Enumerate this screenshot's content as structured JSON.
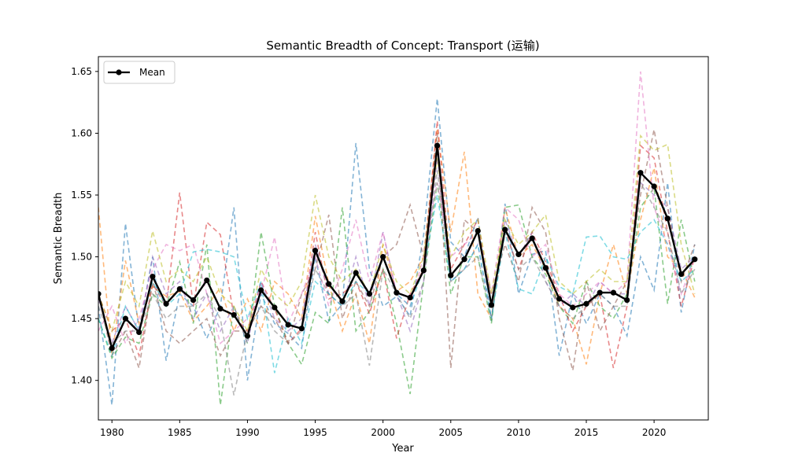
{
  "chart_data": {
    "type": "line",
    "title": "Semantic Breadth of Concept: Transport (运输)",
    "xlabel": "Year",
    "ylabel": "Semantic Breadth",
    "xlim": [
      1979,
      2024
    ],
    "ylim": [
      1.368,
      1.662
    ],
    "x_ticks": [
      1980,
      1985,
      1990,
      1995,
      2000,
      2005,
      2010,
      2015,
      2020
    ],
    "y_ticks": [
      1.4,
      1.45,
      1.5,
      1.55,
      1.6,
      1.65
    ],
    "grid": false,
    "legend": {
      "position": "top-left",
      "entries": [
        "Mean"
      ]
    },
    "x": [
      1979,
      1980,
      1981,
      1982,
      1983,
      1984,
      1985,
      1986,
      1987,
      1988,
      1989,
      1990,
      1991,
      1992,
      1993,
      1994,
      1995,
      1996,
      1997,
      1998,
      1999,
      2000,
      2001,
      2002,
      2003,
      2004,
      2005,
      2006,
      2007,
      2008,
      2009,
      2010,
      2011,
      2012,
      2013,
      2014,
      2015,
      2016,
      2017,
      2018,
      2019,
      2020,
      2021,
      2022,
      2023
    ],
    "series": [
      {
        "name": "Mean",
        "color": "#000000",
        "style": "solid-marker",
        "values": [
          1.47,
          1.426,
          1.45,
          1.439,
          1.484,
          1.462,
          1.474,
          1.465,
          1.481,
          1.458,
          1.453,
          1.436,
          1.473,
          1.459,
          1.445,
          1.442,
          1.505,
          1.478,
          1.464,
          1.487,
          1.47,
          1.5,
          1.471,
          1.467,
          1.489,
          1.59,
          1.485,
          1.498,
          1.521,
          1.461,
          1.522,
          1.502,
          1.515,
          1.491,
          1.466,
          1.459,
          1.462,
          1.471,
          1.471,
          1.465,
          1.568,
          1.557,
          1.531,
          1.486,
          1.498
        ]
      },
      {
        "color": "#1f77b4",
        "style": "dashed",
        "values": [
          1.46,
          1.38,
          1.527,
          1.44,
          1.5,
          1.416,
          1.47,
          1.46,
          1.434,
          1.46,
          1.54,
          1.4,
          1.47,
          1.446,
          1.438,
          1.426,
          1.5,
          1.448,
          1.462,
          1.592,
          1.49,
          1.46,
          1.468,
          1.452,
          1.518,
          1.628,
          1.512,
          1.5,
          1.532,
          1.448,
          1.543,
          1.47,
          1.502,
          1.505,
          1.42,
          1.47,
          1.446,
          1.47,
          1.46,
          1.436,
          1.5,
          1.473,
          1.56,
          1.455,
          1.51
        ]
      },
      {
        "color": "#ff7f0e",
        "style": "dashed",
        "values": [
          1.54,
          1.42,
          1.497,
          1.446,
          1.476,
          1.468,
          1.472,
          1.448,
          1.46,
          1.475,
          1.44,
          1.466,
          1.44,
          1.48,
          1.47,
          1.45,
          1.533,
          1.478,
          1.44,
          1.47,
          1.43,
          1.51,
          1.472,
          1.48,
          1.5,
          1.604,
          1.52,
          1.585,
          1.47,
          1.45,
          1.54,
          1.5,
          1.51,
          1.49,
          1.46,
          1.45,
          1.413,
          1.47,
          1.51,
          1.47,
          1.53,
          1.572,
          1.5,
          1.49,
          1.467
        ]
      },
      {
        "color": "#2ca02c",
        "style": "dashed",
        "values": [
          1.45,
          1.418,
          1.435,
          1.43,
          1.47,
          1.46,
          1.496,
          1.446,
          1.51,
          1.38,
          1.46,
          1.43,
          1.52,
          1.46,
          1.43,
          1.413,
          1.455,
          1.446,
          1.54,
          1.44,
          1.456,
          1.49,
          1.446,
          1.389,
          1.48,
          1.56,
          1.47,
          1.5,
          1.5,
          1.446,
          1.54,
          1.542,
          1.5,
          1.486,
          1.46,
          1.446,
          1.48,
          1.46,
          1.45,
          1.47,
          1.54,
          1.556,
          1.462,
          1.53,
          1.48
        ]
      },
      {
        "color": "#d62728",
        "style": "dashed",
        "values": [
          1.47,
          1.44,
          1.45,
          1.42,
          1.478,
          1.46,
          1.552,
          1.46,
          1.528,
          1.518,
          1.452,
          1.44,
          1.48,
          1.458,
          1.43,
          1.442,
          1.52,
          1.466,
          1.47,
          1.48,
          1.454,
          1.49,
          1.434,
          1.47,
          1.49,
          1.61,
          1.49,
          1.51,
          1.53,
          1.46,
          1.522,
          1.49,
          1.52,
          1.496,
          1.47,
          1.44,
          1.46,
          1.47,
          1.41,
          1.46,
          1.59,
          1.58,
          1.52,
          1.46,
          1.5
        ]
      },
      {
        "color": "#9467bd",
        "style": "dashed",
        "values": [
          1.466,
          1.43,
          1.46,
          1.44,
          1.5,
          1.47,
          1.48,
          1.45,
          1.47,
          1.44,
          1.46,
          1.43,
          1.48,
          1.45,
          1.44,
          1.45,
          1.51,
          1.47,
          1.46,
          1.5,
          1.46,
          1.52,
          1.47,
          1.44,
          1.48,
          1.58,
          1.48,
          1.49,
          1.51,
          1.45,
          1.53,
          1.5,
          1.52,
          1.48,
          1.46,
          1.47,
          1.46,
          1.48,
          1.47,
          1.47,
          1.56,
          1.55,
          1.54,
          1.49,
          1.5
        ]
      },
      {
        "color": "#8c564b",
        "style": "dashed",
        "values": [
          1.47,
          1.42,
          1.44,
          1.41,
          1.48,
          1.44,
          1.43,
          1.44,
          1.45,
          1.42,
          1.44,
          1.44,
          1.46,
          1.45,
          1.43,
          1.47,
          1.49,
          1.534,
          1.45,
          1.48,
          1.46,
          1.5,
          1.51,
          1.542,
          1.5,
          1.6,
          1.41,
          1.53,
          1.52,
          1.47,
          1.51,
          1.48,
          1.54,
          1.52,
          1.45,
          1.408,
          1.48,
          1.44,
          1.46,
          1.48,
          1.55,
          1.603,
          1.54,
          1.48,
          1.51
        ]
      },
      {
        "color": "#e377c2",
        "style": "dashed",
        "values": [
          1.44,
          1.46,
          1.43,
          1.45,
          1.49,
          1.51,
          1.505,
          1.51,
          1.47,
          1.43,
          1.44,
          1.45,
          1.47,
          1.516,
          1.446,
          1.47,
          1.5,
          1.46,
          1.49,
          1.53,
          1.48,
          1.52,
          1.47,
          1.46,
          1.5,
          1.56,
          1.5,
          1.51,
          1.52,
          1.47,
          1.54,
          1.53,
          1.5,
          1.51,
          1.47,
          1.46,
          1.47,
          1.48,
          1.47,
          1.48,
          1.65,
          1.54,
          1.51,
          1.47,
          1.5
        ]
      },
      {
        "color": "#7f7f7f",
        "style": "dashed",
        "values": [
          1.46,
          1.43,
          1.44,
          1.44,
          1.47,
          1.45,
          1.46,
          1.46,
          1.47,
          1.45,
          1.388,
          1.44,
          1.46,
          1.44,
          1.43,
          1.44,
          1.49,
          1.47,
          1.46,
          1.47,
          1.412,
          1.49,
          1.47,
          1.45,
          1.48,
          1.57,
          1.48,
          1.49,
          1.5,
          1.45,
          1.52,
          1.49,
          1.5,
          1.48,
          1.46,
          1.45,
          1.46,
          1.47,
          1.46,
          1.46,
          1.56,
          1.54,
          1.52,
          1.47,
          1.49
        ]
      },
      {
        "color": "#bcbd22",
        "style": "dashed",
        "values": [
          1.47,
          1.44,
          1.48,
          1.46,
          1.521,
          1.48,
          1.49,
          1.48,
          1.5,
          1.47,
          1.46,
          1.44,
          1.49,
          1.47,
          1.46,
          1.48,
          1.55,
          1.5,
          1.48,
          1.49,
          1.47,
          1.51,
          1.48,
          1.47,
          1.5,
          1.58,
          1.5,
          1.52,
          1.53,
          1.47,
          1.53,
          1.51,
          1.52,
          1.534,
          1.48,
          1.47,
          1.48,
          1.49,
          1.48,
          1.48,
          1.598,
          1.586,
          1.591,
          1.51,
          1.47
        ]
      },
      {
        "color": "#17becf",
        "style": "dashed",
        "values": [
          1.45,
          1.42,
          1.46,
          1.44,
          1.48,
          1.46,
          1.47,
          1.504,
          1.506,
          1.504,
          1.5,
          1.45,
          1.48,
          1.406,
          1.45,
          1.43,
          1.48,
          1.47,
          1.46,
          1.48,
          1.47,
          1.5,
          1.47,
          1.46,
          1.49,
          1.55,
          1.48,
          1.49,
          1.51,
          1.45,
          1.52,
          1.474,
          1.47,
          1.5,
          1.476,
          1.47,
          1.516,
          1.517,
          1.5,
          1.498,
          1.52,
          1.53,
          1.51,
          1.48,
          1.49
        ]
      }
    ]
  }
}
